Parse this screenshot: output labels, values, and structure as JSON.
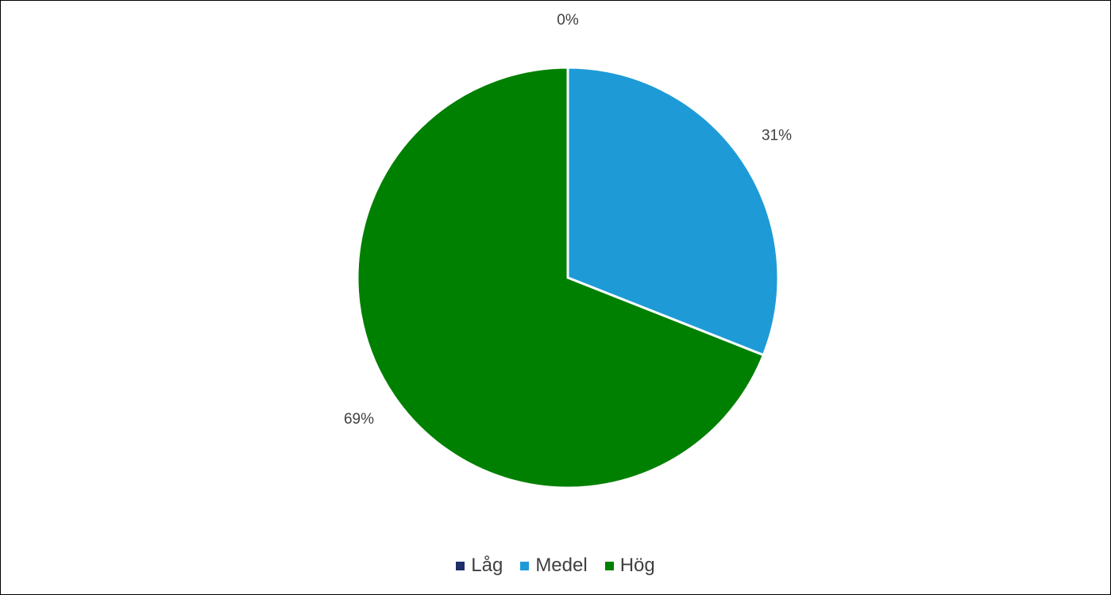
{
  "chart_data": {
    "type": "pie",
    "categories": [
      "Låg",
      "Medel",
      "Hög"
    ],
    "values": [
      0,
      31,
      69
    ],
    "data_labels": [
      "0%",
      "31%",
      "69%"
    ],
    "colors": [
      "#1f2d6b",
      "#1e9bd7",
      "#008000"
    ],
    "legend_position": "bottom",
    "start_angle": "top, clockwise"
  },
  "legend": {
    "items": [
      {
        "label": "Låg",
        "color": "#1f2d6b"
      },
      {
        "label": "Medel",
        "color": "#1e9bd7"
      },
      {
        "label": "Hög",
        "color": "#008000"
      }
    ]
  }
}
